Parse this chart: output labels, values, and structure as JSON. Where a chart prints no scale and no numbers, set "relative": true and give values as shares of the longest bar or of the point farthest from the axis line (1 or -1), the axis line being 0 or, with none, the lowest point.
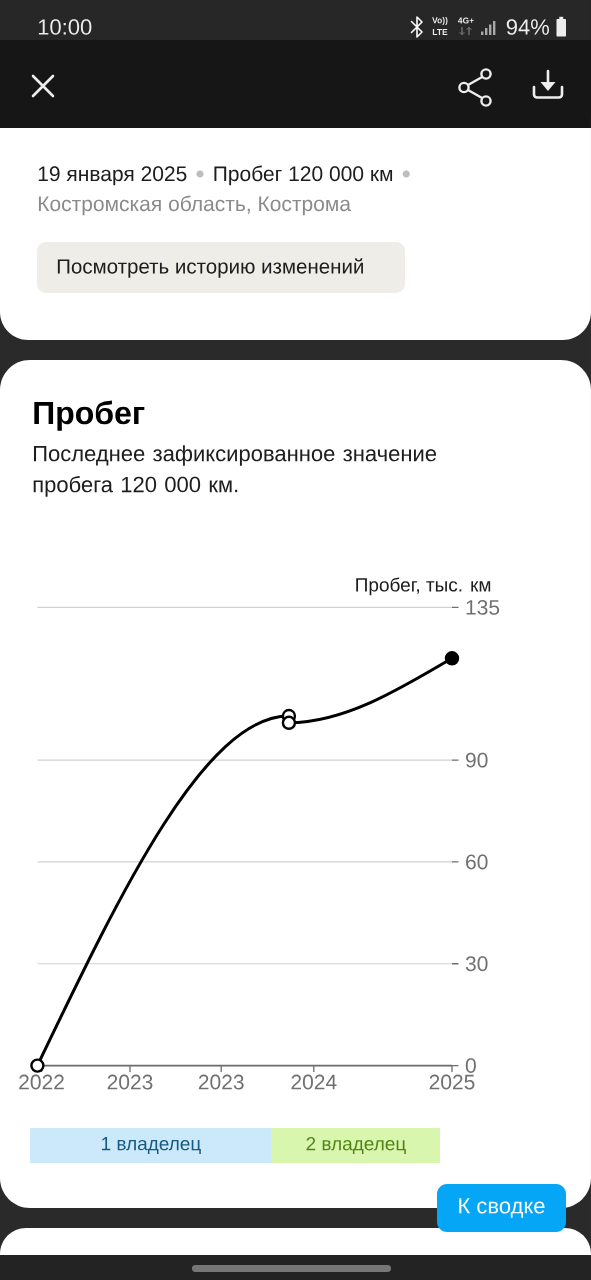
{
  "chart_data": [
    {
      "type": "line",
      "title": "Пробег",
      "subtitle": "Последнее зафиксированное значение пробега 120 000 км.",
      "ylabel": "Пробег, тыс. км",
      "annotations": [
        "10:00",
        "Vo))",
        "LTE",
        "4G+",
        "94%",
        "19 января 2025",
        "Пробег 120 000 км",
        "Костромская область, Кострома",
        "Посмотреть историю изменений",
        "К сводке"
      ],
      "x": [
        2022,
        2023.82,
        2023.82,
        2025
      ],
      "series": [
        {
          "color": "#000000",
          "values": [
            0,
            103,
            101,
            120
          ],
          "colors": [
            "#ffffff",
            "#ffffff",
            "#ffffff",
            "#000000"
          ]
        }
      ],
      "xlim": [
        2022,
        2025
      ],
      "xticks": [
        {
          "value": 2022.03,
          "label": "2022"
        },
        {
          "value": 2022.67,
          "label": "2023"
        },
        {
          "value": 2023.33,
          "label": "2023"
        },
        2024,
        2025
      ],
      "ylim": [
        0,
        135
      ],
      "yticks": [
        0,
        30,
        60,
        90,
        135
      ],
      "grid": "y",
      "marker": "circle",
      "line_style": "solid"
    },
    {
      "type": "bar",
      "orientation": "horizontal",
      "stacked": true,
      "relative": true,
      "categories": [
        null
      ],
      "series": [
        {
          "name": "1 владелец",
          "color": "#cce9fb",
          "values": [
            0.59
          ]
        },
        {
          "name": "2 владелец",
          "color": "#d8f6ae",
          "values": [
            0.41
          ]
        }
      ]
    }
  ]
}
